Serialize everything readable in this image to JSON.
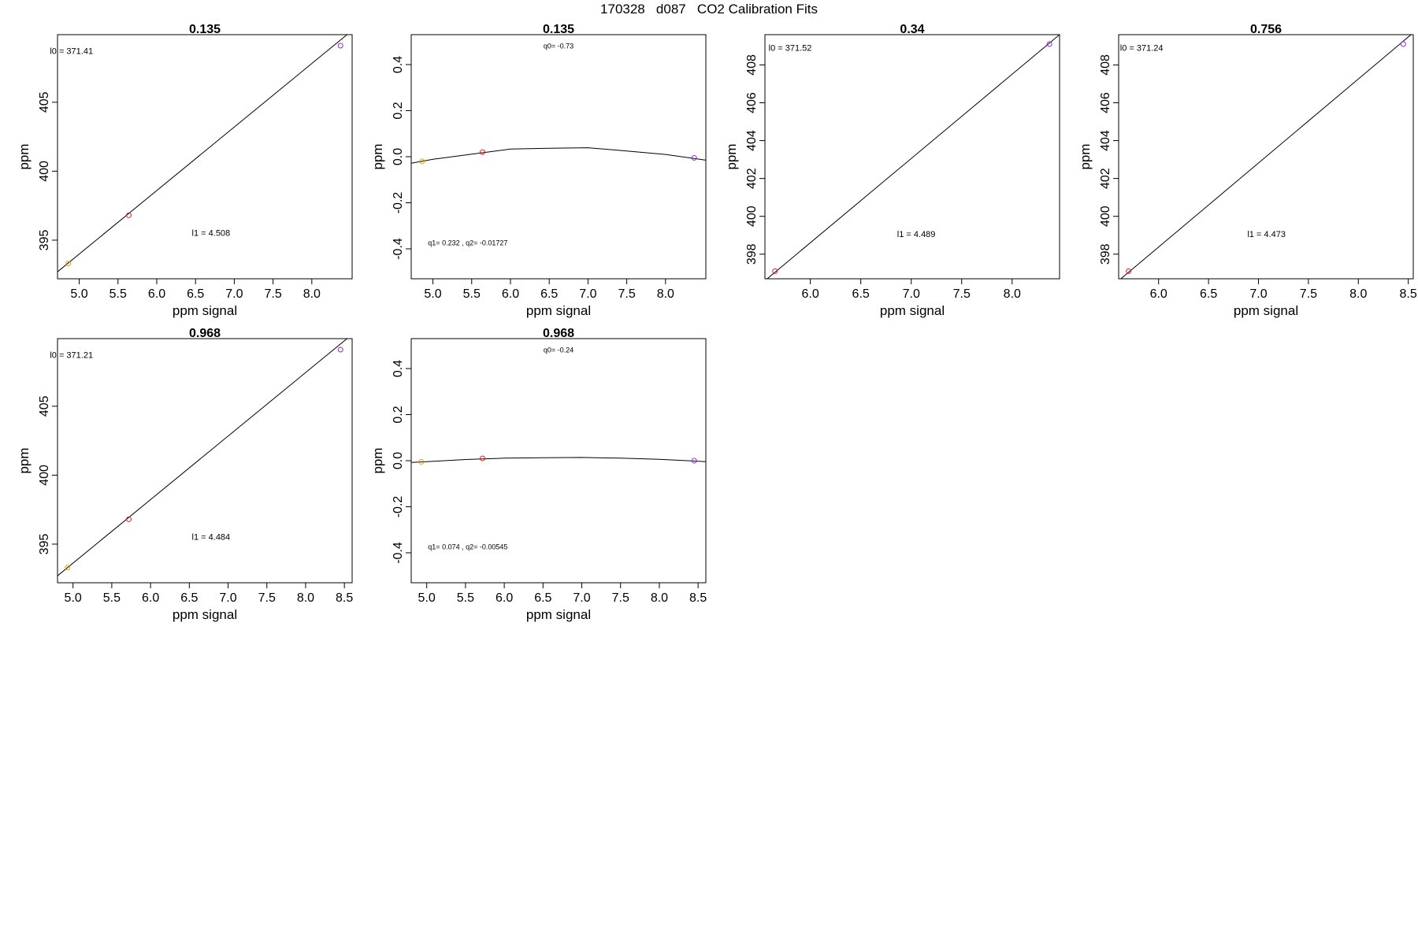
{
  "page": {
    "title": "170328   d087   CO2 Calibration Fits"
  },
  "colors": {
    "axis": "#000000",
    "fit_line": "#000000",
    "point_orange": "#e69f00",
    "point_red": "#e41a1c",
    "point_purple": "#8a2be2"
  },
  "chart_data": [
    {
      "type": "scatter",
      "title": "0.135",
      "xlabel": "ppm signal",
      "ylabel": "ppm",
      "xlim": [
        4.72,
        8.52
      ],
      "ylim": [
        392.2,
        409.9
      ],
      "xticks": [
        5.0,
        5.5,
        6.0,
        6.5,
        7.0,
        7.5,
        8.0
      ],
      "yticks": [
        395,
        400,
        405
      ],
      "points": [
        {
          "x": 4.86,
          "y": 393.3,
          "color": "orange"
        },
        {
          "x": 5.64,
          "y": 396.8,
          "color": "red"
        },
        {
          "x": 8.37,
          "y": 409.1,
          "color": "purple"
        }
      ],
      "line": {
        "x": [
          4.72,
          8.52
        ],
        "y": [
          392.7,
          410.2
        ]
      },
      "annotations": [
        {
          "id": "l0",
          "text": "l0 =  371.41",
          "x": 4.9,
          "y": 408.5
        },
        {
          "id": "l1",
          "text": "l1 =  4.508",
          "x": 6.7,
          "y": 395.3
        }
      ]
    },
    {
      "type": "scatter",
      "title": "0.135",
      "xlabel": "ppm signal",
      "ylabel": "ppm",
      "xlim": [
        4.72,
        8.52
      ],
      "ylim": [
        -0.53,
        0.53
      ],
      "xticks": [
        5.0,
        5.5,
        6.0,
        6.5,
        7.0,
        7.5,
        8.0
      ],
      "yticks": [
        -0.4,
        -0.2,
        0.0,
        0.2,
        0.4
      ],
      "points": [
        {
          "x": 4.86,
          "y": -0.02,
          "color": "orange"
        },
        {
          "x": 5.64,
          "y": 0.02,
          "color": "red"
        },
        {
          "x": 8.37,
          "y": -0.005,
          "color": "purple"
        }
      ],
      "line": {
        "x": [
          4.72,
          5.0,
          5.5,
          6.0,
          6.5,
          7.0,
          7.5,
          8.0,
          8.52
        ],
        "y": [
          -0.028,
          -0.011,
          0.011,
          0.033,
          0.037,
          0.039,
          0.025,
          0.01,
          -0.015
        ]
      },
      "annotations": [
        {
          "id": "q0",
          "text": "q0= -0.73",
          "x": 6.62,
          "y": 0.47
        },
        {
          "id": "q1q2",
          "text": "q1= 0.232 , q2= -0.01727",
          "x": 5.45,
          "y": -0.385
        }
      ]
    },
    {
      "type": "scatter",
      "title": "0.34",
      "xlabel": "ppm signal",
      "ylabel": "ppm",
      "xlim": [
        5.55,
        8.47
      ],
      "ylim": [
        396.7,
        409.6
      ],
      "xticks": [
        6.0,
        6.5,
        7.0,
        7.5,
        8.0
      ],
      "yticks": [
        398,
        400,
        402,
        404,
        406,
        408
      ],
      "points": [
        {
          "x": 5.65,
          "y": 397.1,
          "color": "red"
        },
        {
          "x": 8.37,
          "y": 409.1,
          "color": "purple"
        }
      ],
      "line": {
        "x": [
          5.55,
          8.47
        ],
        "y": [
          396.6,
          409.6
        ]
      },
      "annotations": [
        {
          "id": "l0",
          "text": "l0 =  371.52",
          "x": 5.8,
          "y": 408.75
        },
        {
          "id": "l1",
          "text": "l1 =  4.489",
          "x": 7.05,
          "y": 398.9
        }
      ]
    },
    {
      "type": "scatter",
      "title": "0.756",
      "xlabel": "ppm signal",
      "ylabel": "ppm",
      "xlim": [
        5.6,
        8.55
      ],
      "ylim": [
        396.7,
        409.6
      ],
      "xticks": [
        6.0,
        6.5,
        7.0,
        7.5,
        8.0,
        8.5
      ],
      "yticks": [
        398,
        400,
        402,
        404,
        406,
        408
      ],
      "points": [
        {
          "x": 5.7,
          "y": 397.1,
          "color": "red"
        },
        {
          "x": 8.45,
          "y": 409.1,
          "color": "purple"
        }
      ],
      "line": {
        "x": [
          5.6,
          8.55
        ],
        "y": [
          396.6,
          409.7
        ]
      },
      "annotations": [
        {
          "id": "l0",
          "text": "l0 =  371.24",
          "x": 5.83,
          "y": 408.75
        },
        {
          "id": "l1",
          "text": "l1 =  4.473",
          "x": 7.08,
          "y": 398.9
        }
      ]
    },
    {
      "type": "scatter",
      "title": "0.968",
      "xlabel": "ppm signal",
      "ylabel": "ppm",
      "xlim": [
        4.8,
        8.6
      ],
      "ylim": [
        392.2,
        409.9
      ],
      "xticks": [
        5.0,
        5.5,
        6.0,
        6.5,
        7.0,
        7.5,
        8.0,
        8.5
      ],
      "yticks": [
        395,
        400,
        405
      ],
      "points": [
        {
          "x": 4.93,
          "y": 393.3,
          "color": "orange"
        },
        {
          "x": 5.72,
          "y": 396.8,
          "color": "red"
        },
        {
          "x": 8.45,
          "y": 409.1,
          "color": "purple"
        }
      ],
      "line": {
        "x": [
          4.8,
          8.6
        ],
        "y": [
          392.7,
          410.2
        ]
      },
      "annotations": [
        {
          "id": "l0",
          "text": "l0 =  371.21",
          "x": 4.98,
          "y": 408.5
        },
        {
          "id": "l1",
          "text": "l1 =  4.484",
          "x": 6.78,
          "y": 395.3
        }
      ]
    },
    {
      "type": "scatter",
      "title": "0.968",
      "xlabel": "ppm signal",
      "ylabel": "ppm",
      "xlim": [
        4.8,
        8.6
      ],
      "ylim": [
        -0.53,
        0.53
      ],
      "xticks": [
        5.0,
        5.5,
        6.0,
        6.5,
        7.0,
        7.5,
        8.0,
        8.5
      ],
      "yticks": [
        -0.4,
        -0.2,
        0.0,
        0.2,
        0.4
      ],
      "points": [
        {
          "x": 4.93,
          "y": -0.005,
          "color": "orange"
        },
        {
          "x": 5.72,
          "y": 0.01,
          "color": "red"
        },
        {
          "x": 8.45,
          "y": 0.0,
          "color": "purple"
        }
      ],
      "line": {
        "x": [
          4.8,
          5.0,
          5.5,
          6.0,
          6.5,
          7.0,
          7.5,
          8.0,
          8.6
        ],
        "y": [
          -0.008,
          -0.004,
          0.005,
          0.011,
          0.013,
          0.014,
          0.011,
          0.006,
          -0.004
        ]
      },
      "annotations": [
        {
          "id": "q0",
          "text": "q0= -0.24",
          "x": 6.7,
          "y": 0.47
        },
        {
          "id": "q1q2",
          "text": "q1= 0.074 , q2= -0.00545",
          "x": 5.53,
          "y": -0.385
        }
      ]
    }
  ]
}
